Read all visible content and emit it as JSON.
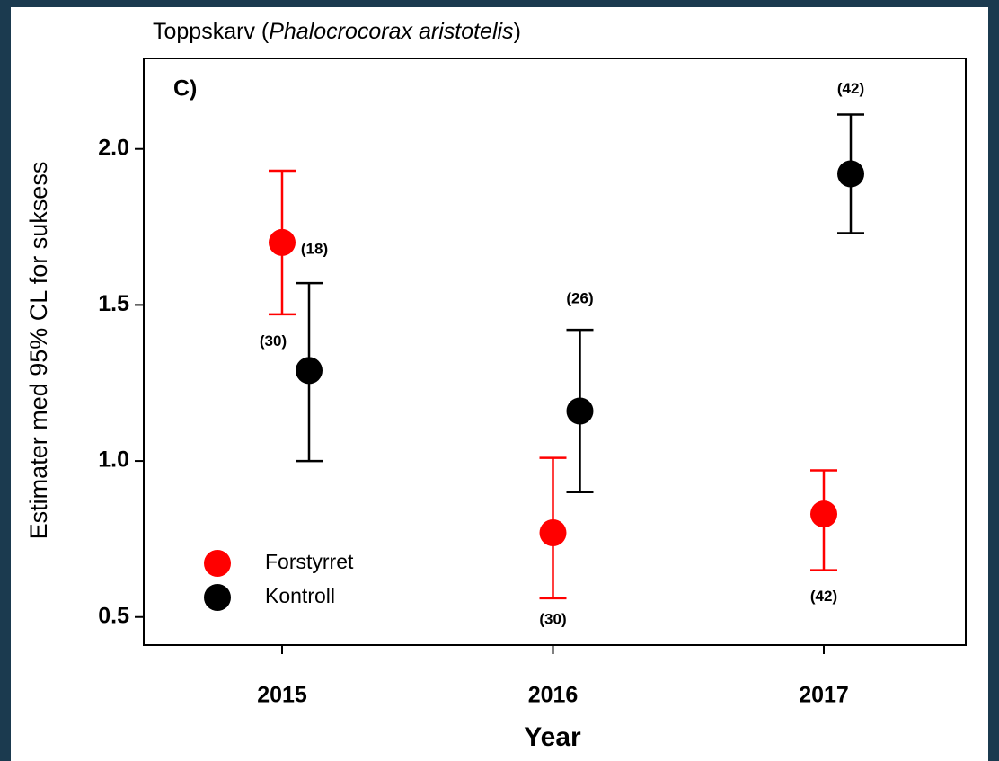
{
  "chart_data": {
    "type": "errorbar",
    "title": [
      "Toppskarv (",
      "Phalocrocorax  aristotelis",
      ")"
    ],
    "panel_label": "C)",
    "x_label": "Year",
    "y_label": "Estimater med 95% CL for suksess",
    "categories": [
      "2015",
      "2016",
      "2017"
    ],
    "ylim": [
      0.41,
      2.29
    ],
    "yticks": [
      0.5,
      {
        "value": 1,
        "label": "1.0"
      },
      1.5,
      {
        "value": 2,
        "label": "2.0"
      }
    ],
    "legend": "lower left",
    "series": [
      {
        "name": "Forstyrret",
        "color": "#ff0000",
        "values": [
          1.7,
          0.77,
          0.83
        ],
        "lower": [
          1.47,
          0.56,
          0.65
        ],
        "upper": [
          1.93,
          1.01,
          0.97
        ],
        "n_labels": [
          "(18)",
          "(30)",
          "(42)"
        ]
      },
      {
        "name": "Kontroll",
        "color": "#000000",
        "values": [
          1.29,
          1.16,
          1.92
        ],
        "lower": [
          1.0,
          0.9,
          1.73
        ],
        "upper": [
          1.57,
          1.42,
          2.11
        ],
        "n_labels": [
          "(30)",
          "(26)",
          "(42)"
        ]
      }
    ]
  }
}
